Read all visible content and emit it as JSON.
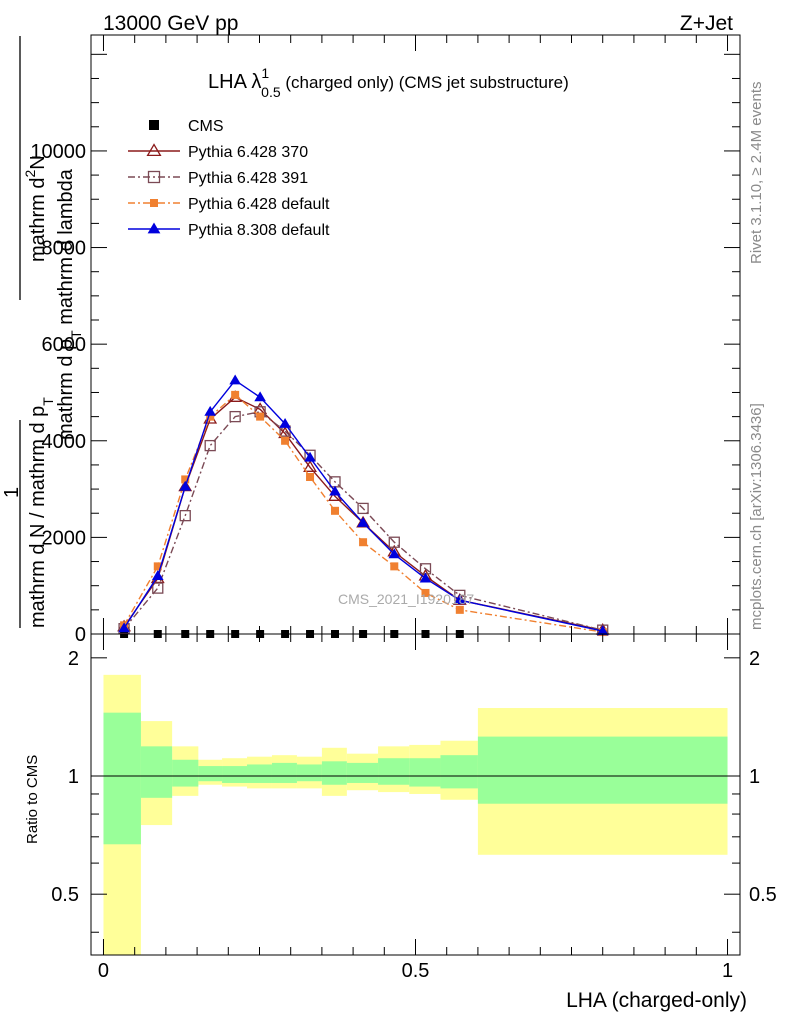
{
  "header": {
    "energy_label": "13000 GeV pp",
    "process_label": "Z+Jet",
    "title": "LHA λ",
    "title_sup": "1",
    "title_sub": "0.5",
    "title_suffix": " (charged only) (CMS jet substructure)",
    "watermark": "CMS_2021_I1920187",
    "side_rivet": "Rivet 3.1.10, ≥ 2.4M events",
    "side_mcplots": "mcplots.cern.ch [arXiv:1306.3436]"
  },
  "chart_data": [
    {
      "type": "line",
      "ylabel_top": "mathrm d",
      "ylabel_top2": "N",
      "ylabel_sup": "2",
      "ylabel_mid": "mathrm d p",
      "ylabel_mid_sub": "T",
      "ylabel_mid2": " mathrm d lambda",
      "ylabel_one": "1",
      "ylabel_bottom": "mathrm d N / mathrm d p",
      "ylabel_bottom_sub": "T",
      "ylim": [
        0,
        12400
      ],
      "xlim": [
        -0.02,
        1.02
      ],
      "yticks": [
        0,
        2000,
        4000,
        6000,
        8000,
        10000
      ],
      "ytick_labels": [
        "0",
        "2000",
        "4000",
        "6000",
        "8000",
        "10000"
      ],
      "legend_position": "top-left",
      "series": [
        {
          "name": "CMS",
          "color": "#000000",
          "marker": "filled-square",
          "line": "none",
          "x": [
            0.033,
            0.087,
            0.131,
            0.171,
            0.211,
            0.251,
            0.291,
            0.331,
            0.371,
            0.416,
            0.466,
            0.516,
            0.571
          ],
          "values": [
            0,
            0,
            0,
            0,
            0,
            0,
            0,
            0,
            0,
            0,
            0,
            0,
            0
          ]
        },
        {
          "name": "Pythia 6.428 370",
          "color": "#8b1a1a",
          "marker": "open-triangle",
          "line": "solid",
          "x": [
            0.033,
            0.087,
            0.131,
            0.171,
            0.211,
            0.251,
            0.291,
            0.331,
            0.371,
            0.416,
            0.466,
            0.516,
            0.571,
            0.8
          ],
          "values": [
            150,
            1150,
            3050,
            4450,
            4900,
            4650,
            4150,
            3450,
            2850,
            2300,
            1700,
            1200,
            700,
            80
          ]
        },
        {
          "name": "Pythia 6.428 391",
          "color": "#7b4a55",
          "marker": "open-square",
          "line": "dashdot",
          "x": [
            0.033,
            0.087,
            0.131,
            0.171,
            0.211,
            0.251,
            0.291,
            0.331,
            0.371,
            0.416,
            0.466,
            0.516,
            0.571,
            0.8
          ],
          "values": [
            110,
            950,
            2450,
            3900,
            4500,
            4600,
            4200,
            3700,
            3150,
            2600,
            1900,
            1350,
            800,
            80
          ]
        },
        {
          "name": "Pythia 6.428 default",
          "color": "#f08030",
          "marker": "filled-square",
          "line": "dashdot",
          "x": [
            0.033,
            0.087,
            0.131,
            0.171,
            0.211,
            0.251,
            0.291,
            0.331,
            0.371,
            0.416,
            0.466,
            0.516,
            0.571,
            0.8
          ],
          "values": [
            180,
            1400,
            3200,
            4500,
            4950,
            4500,
            4000,
            3250,
            2550,
            1900,
            1400,
            850,
            500,
            40
          ]
        },
        {
          "name": "Pythia 8.308 default",
          "color": "#0000dd",
          "marker": "filled-triangle",
          "line": "solid",
          "x": [
            0.033,
            0.087,
            0.131,
            0.171,
            0.211,
            0.251,
            0.291,
            0.331,
            0.371,
            0.416,
            0.466,
            0.516,
            0.571,
            0.8
          ],
          "values": [
            120,
            1200,
            3050,
            4600,
            5250,
            4900,
            4350,
            3650,
            2950,
            2300,
            1650,
            1150,
            700,
            60
          ]
        }
      ]
    },
    {
      "type": "area",
      "ylabel": "Ratio to CMS",
      "xlabel": "LHA (charged-only)",
      "xlim": [
        -0.02,
        1.02
      ],
      "ylim": [
        0.35,
        2.3
      ],
      "yticks": [
        0.5,
        1,
        2
      ],
      "ytick_labels": [
        "0.5",
        "1",
        "2"
      ],
      "xticks": [
        0,
        0.5,
        1
      ],
      "xtick_labels": [
        "0",
        "0.5",
        "1"
      ],
      "reference_line": 1,
      "band_colors": {
        "inner": "#99ff99",
        "outer": "#ffff99"
      },
      "bins": [
        {
          "lo": 0.0,
          "hi": 0.06,
          "inner": [
            0.67,
            1.45
          ],
          "outer": [
            0.33,
            1.81
          ]
        },
        {
          "lo": 0.06,
          "hi": 0.11,
          "inner": [
            0.88,
            1.19
          ],
          "outer": [
            0.75,
            1.38
          ]
        },
        {
          "lo": 0.11,
          "hi": 0.152,
          "inner": [
            0.94,
            1.1
          ],
          "outer": [
            0.89,
            1.19
          ]
        },
        {
          "lo": 0.152,
          "hi": 0.19,
          "inner": [
            0.97,
            1.06
          ],
          "outer": [
            0.95,
            1.1
          ]
        },
        {
          "lo": 0.19,
          "hi": 0.23,
          "inner": [
            0.96,
            1.06
          ],
          "outer": [
            0.94,
            1.11
          ]
        },
        {
          "lo": 0.23,
          "hi": 0.27,
          "inner": [
            0.96,
            1.07
          ],
          "outer": [
            0.93,
            1.12
          ]
        },
        {
          "lo": 0.27,
          "hi": 0.31,
          "inner": [
            0.96,
            1.08
          ],
          "outer": [
            0.93,
            1.13
          ]
        },
        {
          "lo": 0.31,
          "hi": 0.35,
          "inner": [
            0.97,
            1.07
          ],
          "outer": [
            0.93,
            1.12
          ]
        },
        {
          "lo": 0.35,
          "hi": 0.39,
          "inner": [
            0.95,
            1.09
          ],
          "outer": [
            0.89,
            1.18
          ]
        },
        {
          "lo": 0.39,
          "hi": 0.44,
          "inner": [
            0.96,
            1.08
          ],
          "outer": [
            0.92,
            1.14
          ]
        },
        {
          "lo": 0.44,
          "hi": 0.49,
          "inner": [
            0.95,
            1.11
          ],
          "outer": [
            0.91,
            1.19
          ]
        },
        {
          "lo": 0.49,
          "hi": 0.54,
          "inner": [
            0.94,
            1.11
          ],
          "outer": [
            0.9,
            1.2
          ]
        },
        {
          "lo": 0.54,
          "hi": 0.6,
          "inner": [
            0.93,
            1.13
          ],
          "outer": [
            0.87,
            1.23
          ]
        },
        {
          "lo": 0.6,
          "hi": 1.0,
          "inner": [
            0.85,
            1.26
          ],
          "outer": [
            0.63,
            1.49
          ]
        }
      ]
    }
  ]
}
